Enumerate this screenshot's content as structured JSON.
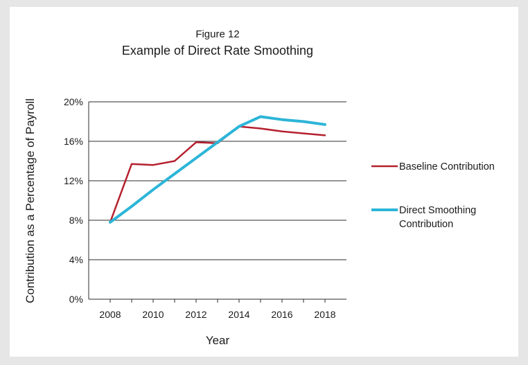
{
  "chart_data": {
    "type": "line",
    "figure_label": "Figure 12",
    "title": "Example of Direct Rate Smoothing",
    "xlabel": "Year",
    "ylabel": "Contribution as a Percentage of Payroll",
    "xlim": [
      2007,
      2019
    ],
    "ylim": [
      0,
      20
    ],
    "x_ticks": [
      "2008",
      "2010",
      "2012",
      "2014",
      "2016",
      "2018"
    ],
    "y_ticks": [
      "0%",
      "4%",
      "8%",
      "12%",
      "16%",
      "20%"
    ],
    "grid": "horizontal",
    "legend_position": "right",
    "x": [
      2008,
      2009,
      2010,
      2011,
      2012,
      2013,
      2014,
      2015,
      2016,
      2017,
      2018
    ],
    "series": [
      {
        "name": "Baseline Contribution",
        "color": "#b5202e",
        "values": [
          7.8,
          13.7,
          13.6,
          14.0,
          15.9,
          15.8,
          17.5,
          17.3,
          17.0,
          16.8,
          16.6
        ]
      },
      {
        "name": "Direct Smoothing Contribution",
        "color": "#2cb5d8",
        "values": [
          7.8,
          9.4,
          11.1,
          12.7,
          14.3,
          15.9,
          17.5,
          18.5,
          18.2,
          18.0,
          17.7
        ]
      }
    ]
  }
}
